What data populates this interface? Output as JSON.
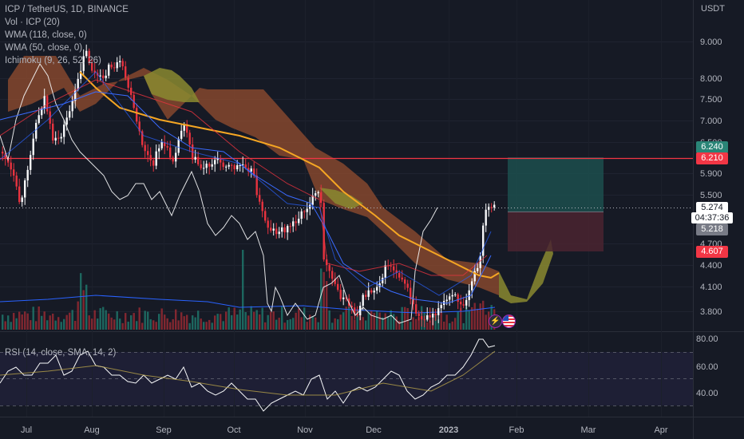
{
  "legend": {
    "symbol": "ICP / TetherUS, 1D, BINANCE",
    "vol": "Vol · ICP (20)",
    "wma118": "WMA (118, close, 0)",
    "wma50": "WMA (50, close, 0)",
    "ichimoku": "Ichimoku (9, 26, 52, 26)",
    "rsi": "RSI (14, close, SMA, 14, 2)"
  },
  "currency": "USDT",
  "price_axis": {
    "ticks": [
      "9.000",
      "8.000",
      "7.500",
      "7.000",
      "6.500",
      "5.900",
      "5.500",
      "4.700",
      "4.400",
      "4.100",
      "3.800"
    ],
    "tags": {
      "target": "6.240",
      "hline": "6.210",
      "last": "5.274",
      "countdown": "04:37:36",
      "ichimoku_tag": "5.218",
      "stop": "4.607"
    }
  },
  "rsi_axis": {
    "ticks": [
      "80.00",
      "60.00",
      "40.00"
    ]
  },
  "time_axis": [
    "Jul",
    "Aug",
    "Sep",
    "Oct",
    "Nov",
    "Dec",
    "2023",
    "Feb",
    "Mar",
    "Apr"
  ],
  "colors": {
    "background": "#161a25",
    "candle_up": "#f7f8fa",
    "candle_down": "#e8333f",
    "hline": "#f23645",
    "wma118": "#f5a623",
    "wma50": "#2962ff",
    "cloud_bear": "#8c4a2e",
    "cloud_bull": "#8a8a30",
    "target_zone": "#1c4f4d",
    "stop_zone": "#4a2430",
    "rsi_bg": "#272544",
    "target_tag": "#2a8577",
    "hline_tag": "#f23645",
    "last_tag": "#ffffff",
    "ichimoku_tag_bg": "#787b86",
    "stop_tag": "#f23645"
  },
  "icons": [
    "lightning-icon",
    "us-flag-icon"
  ]
}
